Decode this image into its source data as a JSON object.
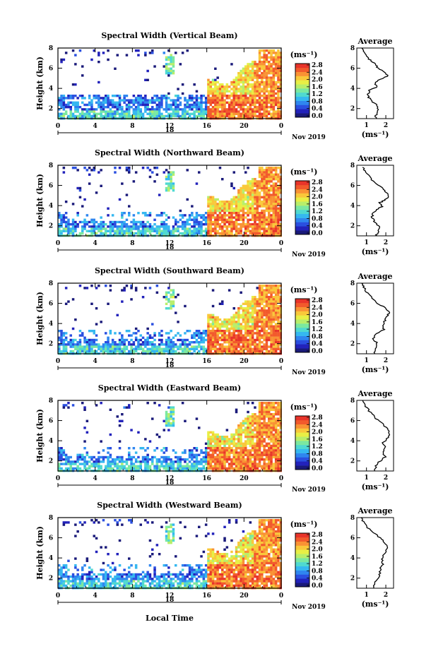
{
  "colors": [
    "#1a1a7a",
    "#2222bb",
    "#2a4fe0",
    "#2f86ef",
    "#35b8f0",
    "#4fd9d0",
    "#7be8a0",
    "#b8ee6a",
    "#e8ef45",
    "#f9c83a",
    "#f99234",
    "#f25a2c",
    "#e8342a"
  ],
  "xlabel": "Local Time",
  "ylabel": "Height (km)",
  "unit_label": "(ms⁻¹)",
  "date_label": "Nov 2019",
  "day_label": "18",
  "x_ticks": [
    "0",
    "4",
    "8",
    "12",
    "16",
    "20",
    "0"
  ],
  "y_ticks": [
    "2",
    "4",
    "6",
    "8"
  ],
  "cbar_ticks": [
    "0.0",
    "0.4",
    "0.8",
    "1.2",
    "1.6",
    "2.0",
    "2.4",
    "2.8"
  ],
  "avg_title": "Average",
  "avg_xlabel": "(ms⁻¹)",
  "chart_data": [
    {
      "type": "heatmap",
      "title": "Spectral Width (Vertical Beam)",
      "avg_x_ticks": [
        "1",
        "2"
      ],
      "avg_xlim": [
        0.5,
        2.4
      ],
      "avg_profile": [
        [
          1.45,
          1.0
        ],
        [
          1.5,
          1.4
        ],
        [
          1.6,
          1.9
        ],
        [
          1.5,
          2.4
        ],
        [
          1.2,
          2.9
        ],
        [
          1.05,
          3.3
        ],
        [
          1.15,
          3.8
        ],
        [
          1.5,
          4.1
        ],
        [
          1.45,
          4.5
        ],
        [
          1.7,
          4.9
        ],
        [
          2.1,
          5.2
        ],
        [
          1.95,
          5.6
        ],
        [
          1.6,
          6.0
        ],
        [
          1.45,
          6.4
        ],
        [
          1.2,
          6.8
        ],
        [
          1.0,
          7.2
        ],
        [
          0.85,
          7.7
        ],
        [
          0.75,
          8.0
        ]
      ]
    },
    {
      "type": "heatmap",
      "title": "Spectral Width (Northward Beam)",
      "avg_x_ticks": [
        "1",
        "2"
      ],
      "avg_xlim": [
        0.5,
        2.4
      ],
      "avg_profile": [
        [
          1.5,
          1.0
        ],
        [
          1.6,
          1.4
        ],
        [
          1.65,
          1.9
        ],
        [
          1.45,
          2.3
        ],
        [
          1.3,
          2.8
        ],
        [
          1.3,
          3.2
        ],
        [
          1.55,
          3.6
        ],
        [
          1.8,
          3.9
        ],
        [
          1.7,
          4.3
        ],
        [
          2.0,
          4.6
        ],
        [
          2.15,
          5.0
        ],
        [
          1.95,
          5.4
        ],
        [
          1.75,
          5.8
        ],
        [
          1.4,
          6.3
        ],
        [
          1.2,
          6.8
        ],
        [
          0.95,
          7.3
        ],
        [
          0.8,
          7.8
        ]
      ]
    },
    {
      "type": "heatmap",
      "title": "Spectral Width (Southward Beam)",
      "avg_x_ticks": [
        "1",
        "2"
      ],
      "avg_xlim": [
        0.5,
        2.4
      ],
      "avg_profile": [
        [
          1.4,
          1.0
        ],
        [
          1.5,
          1.5
        ],
        [
          1.55,
          2.0
        ],
        [
          1.35,
          2.5
        ],
        [
          1.5,
          3.0
        ],
        [
          1.9,
          3.4
        ],
        [
          1.85,
          3.9
        ],
        [
          1.95,
          4.3
        ],
        [
          2.1,
          4.8
        ],
        [
          2.2,
          5.2
        ],
        [
          1.9,
          5.6
        ],
        [
          1.6,
          6.0
        ],
        [
          1.3,
          6.5
        ],
        [
          1.05,
          7.0
        ],
        [
          0.85,
          7.6
        ],
        [
          0.75,
          8.0
        ]
      ]
    },
    {
      "type": "heatmap",
      "title": "Spectral Width (Eastward Beam)",
      "avg_x_ticks": [
        "1",
        "2"
      ],
      "avg_xlim": [
        0.5,
        2.4
      ],
      "avg_profile": [
        [
          1.4,
          1.0
        ],
        [
          1.5,
          1.5
        ],
        [
          1.7,
          2.0
        ],
        [
          1.95,
          2.4
        ],
        [
          1.8,
          2.9
        ],
        [
          2.0,
          3.3
        ],
        [
          1.85,
          3.8
        ],
        [
          2.05,
          4.2
        ],
        [
          2.2,
          4.7
        ],
        [
          2.05,
          5.2
        ],
        [
          1.8,
          5.7
        ],
        [
          1.5,
          6.2
        ],
        [
          1.2,
          6.8
        ],
        [
          0.95,
          7.4
        ],
        [
          0.8,
          8.0
        ]
      ]
    },
    {
      "type": "heatmap",
      "title": "Spectral Width (Westward Beam)",
      "avg_x_ticks": [
        "1",
        "2"
      ],
      "avg_xlim": [
        0.5,
        2.4
      ],
      "avg_profile": [
        [
          1.35,
          1.0
        ],
        [
          1.45,
          1.5
        ],
        [
          1.6,
          2.0
        ],
        [
          1.7,
          2.5
        ],
        [
          1.75,
          3.0
        ],
        [
          1.85,
          3.5
        ],
        [
          1.8,
          4.0
        ],
        [
          1.95,
          4.5
        ],
        [
          2.05,
          5.0
        ],
        [
          1.95,
          5.5
        ],
        [
          1.7,
          6.0
        ],
        [
          1.35,
          6.5
        ],
        [
          1.05,
          7.0
        ],
        [
          0.85,
          7.6
        ],
        [
          0.72,
          8.0
        ]
      ]
    }
  ]
}
